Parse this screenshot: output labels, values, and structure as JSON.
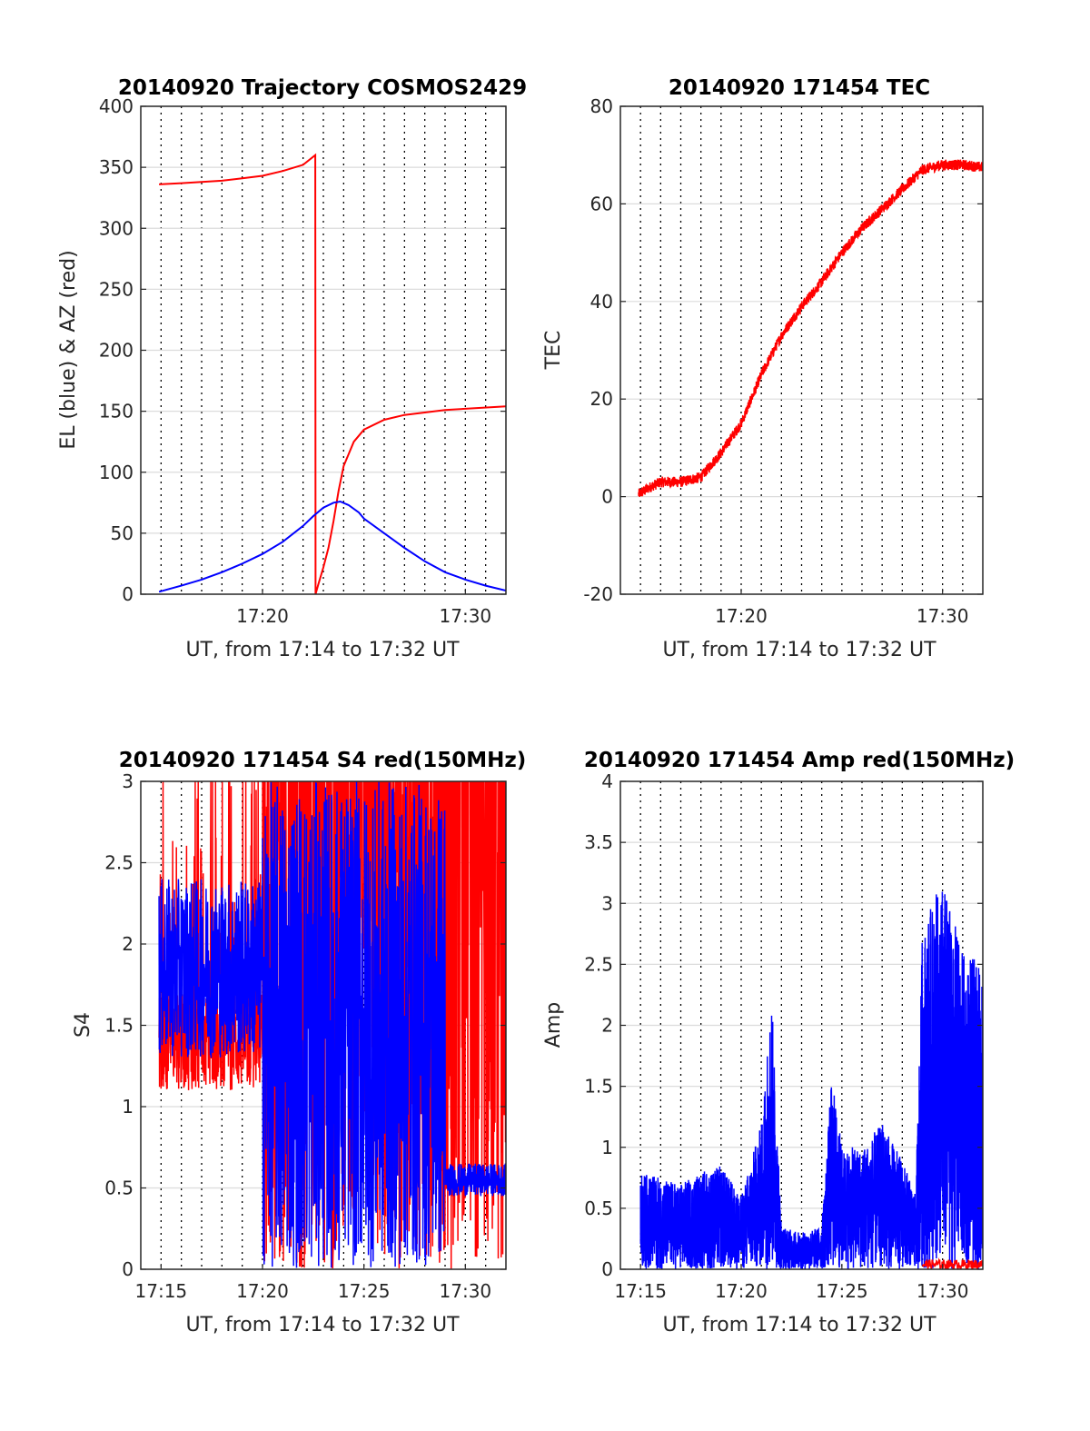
{
  "chart_data": [
    {
      "type": "line",
      "title": "20140920 Trajectory COSMOS2429",
      "xlabel": "UT, from 17:14 to 17:32 UT",
      "ylabel": "EL (blue) & AZ (red)",
      "xlim": [
        "17:14",
        "17:32"
      ],
      "ylim": [
        0,
        400
      ],
      "yticks": [
        0,
        50,
        100,
        150,
        200,
        250,
        300,
        350,
        400
      ],
      "xticks": [
        {
          "t": 20,
          "label": "17:20"
        },
        {
          "t": 30,
          "label": "17:30"
        }
      ],
      "grid": true,
      "series": [
        {
          "color": "#ff0000",
          "x": [
            "17:14:54",
            "17:16",
            "17:17",
            "17:18",
            "17:19",
            "17:20",
            "17:21",
            "17:22",
            "17:22:36",
            "17:22:37",
            "17:22:45",
            "17:23:00",
            "17:23:15",
            "17:23:30",
            "17:23:45",
            "17:24",
            "17:24:30",
            "17:25",
            "17:26",
            "17:27",
            "17:28",
            "17:29",
            "17:30",
            "17:32"
          ],
          "y": [
            336,
            337,
            338,
            339,
            341,
            343,
            347,
            352,
            360,
            0,
            8,
            22,
            38,
            60,
            85,
            105,
            125,
            135,
            143,
            147,
            149,
            151,
            152,
            154
          ]
        },
        {
          "color": "#0000ff",
          "x": [
            "17:14:54",
            "17:16",
            "17:17",
            "17:18",
            "17:19",
            "17:20",
            "17:21",
            "17:22",
            "17:22:30",
            "17:23",
            "17:23:30",
            "17:23:50",
            "17:24:15",
            "17:24:45",
            "17:25",
            "17:26",
            "17:27",
            "17:28",
            "17:29",
            "17:30",
            "17:31",
            "17:32"
          ],
          "y": [
            2,
            7,
            12,
            18,
            25,
            33,
            43,
            56,
            64,
            71,
            75,
            76,
            73,
            67,
            62,
            50,
            38,
            27,
            18,
            12,
            7,
            3
          ]
        }
      ]
    },
    {
      "type": "line",
      "title": "20140920 171454 TEC",
      "xlabel": "UT, from 17:14 to 17:32 UT",
      "ylabel": "TEC",
      "xlim": [
        "17:14",
        "17:32"
      ],
      "ylim": [
        -20,
        80
      ],
      "yticks": [
        -20,
        0,
        20,
        40,
        60,
        80
      ],
      "xticks": [
        {
          "t": 20,
          "label": "17:20"
        },
        {
          "t": 30,
          "label": "17:30"
        }
      ],
      "grid": true,
      "series": [
        {
          "color": "#ff0000",
          "x": [
            "17:14:54",
            "17:15:30",
            "17:16",
            "17:17",
            "17:18",
            "17:19",
            "17:20",
            "17:21",
            "17:22",
            "17:23",
            "17:24",
            "17:25",
            "17:26",
            "17:27",
            "17:28",
            "17:29",
            "17:30",
            "17:31",
            "17:32"
          ],
          "y": [
            0.5,
            2,
            3,
            3,
            4,
            9,
            15,
            25,
            33,
            39,
            44,
            50,
            55,
            59,
            63,
            67,
            68,
            68,
            67.5
          ]
        }
      ]
    },
    {
      "type": "line",
      "title": "20140920 171454 S4 red(150MHz)",
      "xlabel": "UT, from 17:14 to 17:32 UT",
      "ylabel": "S4",
      "xlim": [
        "17:14",
        "17:32"
      ],
      "ylim": [
        0,
        3
      ],
      "yticks": [
        0,
        0.5,
        1,
        1.5,
        2,
        2.5,
        3
      ],
      "xticks": [
        {
          "t": 15,
          "label": "17:15"
        },
        {
          "t": 20,
          "label": "17:20"
        },
        {
          "t": 25,
          "label": "17:25"
        },
        {
          "t": 30,
          "label": "17:30"
        }
      ],
      "grid": true,
      "series": [
        {
          "color": "#ff0000",
          "note_levels": "red trace mostly 1.0–1.5 before 17:20, then heavy saturation between 0 and 3 through 17:32"
        },
        {
          "color": "#0000ff",
          "note_levels": "blue trace 1.3–2.4 before 17:20, full 0–3 range 17:20–17:29, then about 0.55 after 17:29"
        }
      ]
    },
    {
      "type": "line",
      "title": "20140920 171454 Amp red(150MHz)",
      "xlabel": "UT, from 17:14 to 17:32 UT",
      "ylabel": "Amp",
      "xlim": [
        "17:14",
        "17:32"
      ],
      "ylim": [
        0,
        4
      ],
      "yticks": [
        0,
        0.5,
        1,
        1.5,
        2,
        2.5,
        3,
        3.5,
        4
      ],
      "xticks": [
        {
          "t": 15,
          "label": "17:15"
        },
        {
          "t": 20,
          "label": "17:20"
        },
        {
          "t": 25,
          "label": "17:25"
        },
        {
          "t": 30,
          "label": "17:30"
        }
      ],
      "grid": true,
      "series": [
        {
          "color": "#0000ff",
          "x": [
            "17:15",
            "17:16",
            "17:17",
            "17:18",
            "17:19",
            "17:20",
            "17:21",
            "17:21:30",
            "17:22",
            "17:23",
            "17:24",
            "17:24:30",
            "17:25",
            "17:26",
            "17:27",
            "17:28",
            "17:28:40",
            "17:29",
            "17:30",
            "17:31",
            "17:32"
          ],
          "y": [
            0.8,
            0.75,
            0.7,
            0.8,
            0.85,
            0.6,
            1.2,
            2.3,
            0.35,
            0.3,
            0.35,
            1.6,
            1.0,
            1.0,
            1.2,
            0.9,
            0.6,
            2.8,
            3.2,
            2.6,
            2.5
          ]
        },
        {
          "color": "#ff0000",
          "x": [
            "17:29",
            "17:32"
          ],
          "y": [
            0.05,
            0.03
          ]
        }
      ]
    }
  ]
}
